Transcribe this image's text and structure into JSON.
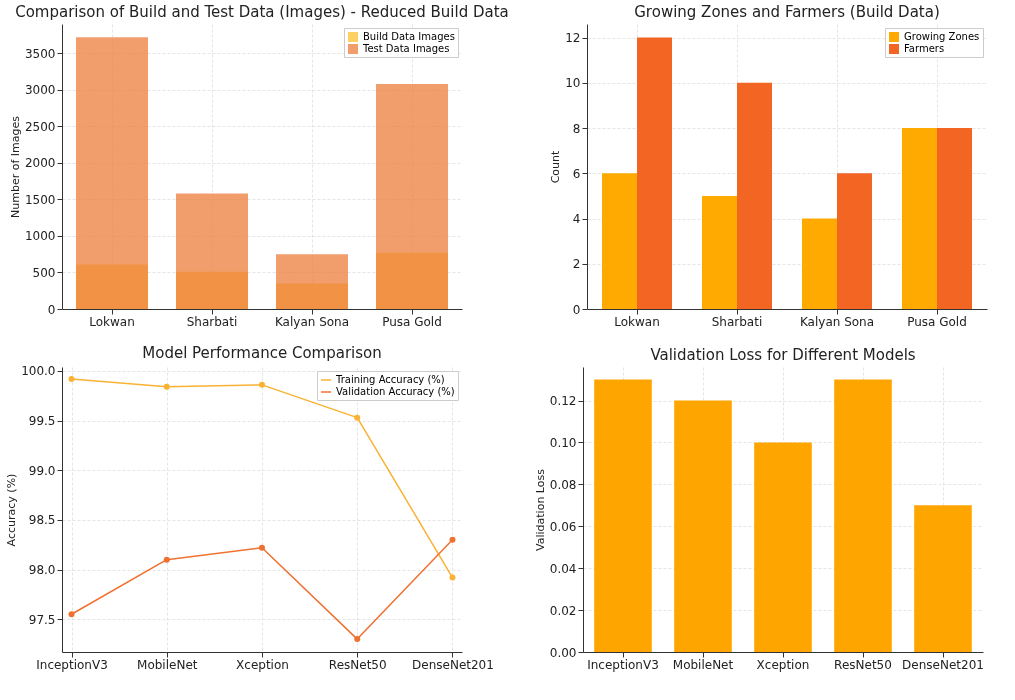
{
  "chart_data": [
    {
      "type": "bar",
      "title": "Comparison of Build and Test Data (Images) - Reduced Build Data",
      "ylabel": "Number of Images",
      "categories": [
        "Lokwan",
        "Sharbati",
        "Kalyan Sona",
        "Pusa Gold"
      ],
      "stacked": false,
      "series": [
        {
          "name": "Build Data Images",
          "color": "#fbc02d",
          "values": [
            610,
            510,
            350,
            770
          ]
        },
        {
          "name": "Test Data Images",
          "color": "#ee7d3b",
          "values": [
            3720,
            1580,
            750,
            3080
          ]
        }
      ],
      "ylim": [
        0,
        3900
      ],
      "yticks": [
        0,
        500,
        1000,
        1500,
        2000,
        2500,
        3000,
        3500
      ],
      "grid": true,
      "legend": "top right"
    },
    {
      "type": "bar",
      "title": "Growing Zones and Farmers (Build Data)",
      "ylabel": "Count",
      "categories": [
        "Lokwan",
        "Sharbati",
        "Kalyan Sona",
        "Pusa Gold"
      ],
      "series": [
        {
          "name": "Growing Zones",
          "color": "#ffaa00",
          "values": [
            6,
            5,
            4,
            8
          ]
        },
        {
          "name": "Farmers",
          "color": "#f26522",
          "values": [
            12,
            10,
            6,
            8
          ]
        }
      ],
      "ylim": [
        0,
        12.6
      ],
      "yticks": [
        0,
        2,
        4,
        6,
        8,
        10,
        12
      ],
      "grid": true,
      "legend": "top right"
    },
    {
      "type": "line",
      "title": "Model Performance Comparison",
      "ylabel": "Accuracy (%)",
      "categories": [
        "InceptionV3",
        "MobileNet",
        "Xception",
        "ResNet50",
        "DenseNet201"
      ],
      "marker": "circle",
      "series": [
        {
          "name": "Training Accuracy (%)",
          "color": "#f9b233",
          "values": [
            99.92,
            99.84,
            99.86,
            99.53,
            97.92
          ]
        },
        {
          "name": "Validation Accuracy (%)",
          "color": "#f07030",
          "values": [
            97.55,
            98.1,
            98.22,
            97.3,
            98.3
          ]
        }
      ],
      "ylim": [
        97.17,
        100.04
      ],
      "yticks": [
        {
          "value": 97.5,
          "label": "97.5"
        },
        {
          "value": 98,
          "label": "98.0"
        },
        {
          "value": 98.5,
          "label": "98.5"
        },
        {
          "value": 99,
          "label": "99.0"
        },
        {
          "value": 99.5,
          "label": "99.5"
        },
        {
          "value": 100,
          "label": "100.0"
        }
      ],
      "grid": true,
      "legend": "top right"
    },
    {
      "type": "bar",
      "title": "Validation Loss for Different Models",
      "ylabel": "Validation Loss",
      "categories": [
        "InceptionV3",
        "MobileNet",
        "Xception",
        "ResNet50",
        "DenseNet201"
      ],
      "series": [
        {
          "color": "#ffa500",
          "values": [
            0.13,
            0.12,
            0.1,
            0.13,
            0.07
          ]
        }
      ],
      "ylim": [
        0,
        0.136
      ],
      "yticks": [
        {
          "value": 0,
          "label": "0.00"
        },
        {
          "value": 0.02,
          "label": "0.02"
        },
        {
          "value": 0.04,
          "label": "0.04"
        },
        {
          "value": 0.06,
          "label": "0.06"
        },
        {
          "value": 0.08,
          "label": "0.08"
        },
        {
          "value": 0.1,
          "label": "0.10"
        },
        {
          "value": 0.12,
          "label": "0.12"
        }
      ],
      "grid": true
    }
  ]
}
